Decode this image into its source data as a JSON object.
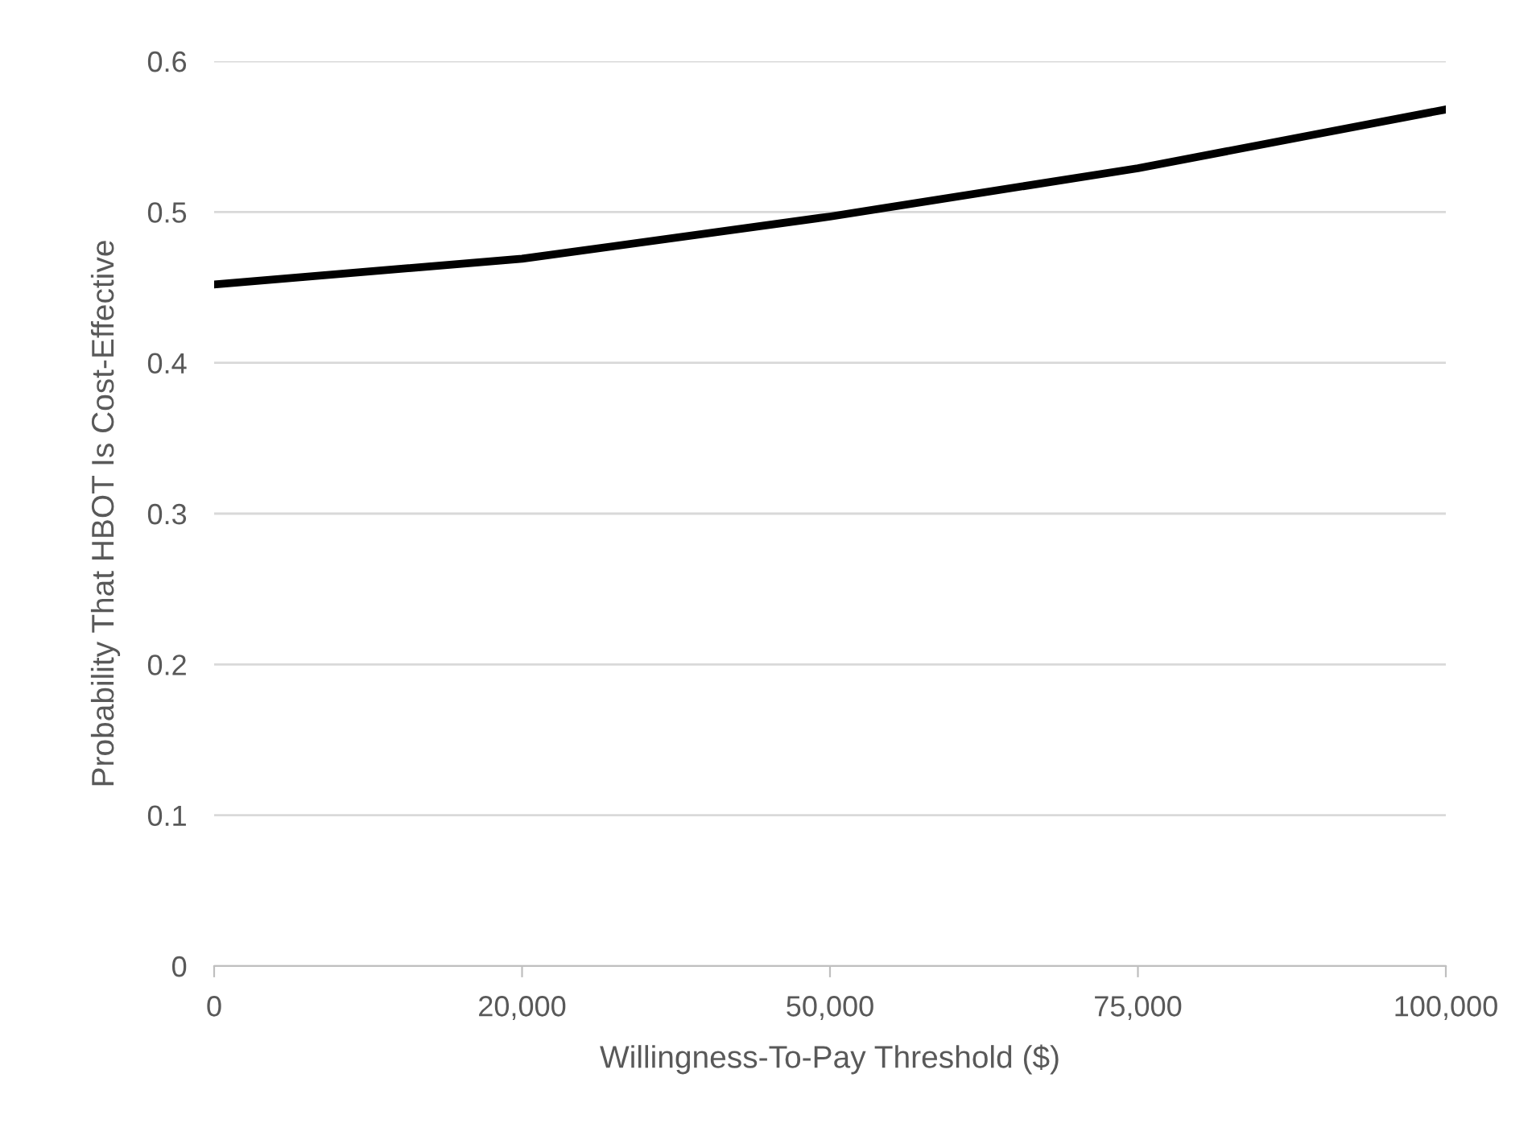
{
  "chart_data": {
    "type": "line",
    "xlabel": "Willingness-To-Pay Threshold ($)",
    "ylabel": "Probability That HBOT Is Cost-Effective",
    "categories": [
      "0",
      "20,000",
      "50,000",
      "75,000",
      "100,000"
    ],
    "series": [
      {
        "color": "#000000",
        "values": [
          0.452,
          0.469,
          0.497,
          0.529,
          0.568
        ]
      }
    ],
    "ylim": [
      0,
      0.6
    ],
    "yticks": [
      {
        "value": 0,
        "label": "0"
      },
      0.1,
      0.2,
      0.3,
      0.4,
      0.5,
      0.6
    ],
    "grid": "y",
    "legend": false,
    "marker": "none",
    "line_style": "solid"
  }
}
